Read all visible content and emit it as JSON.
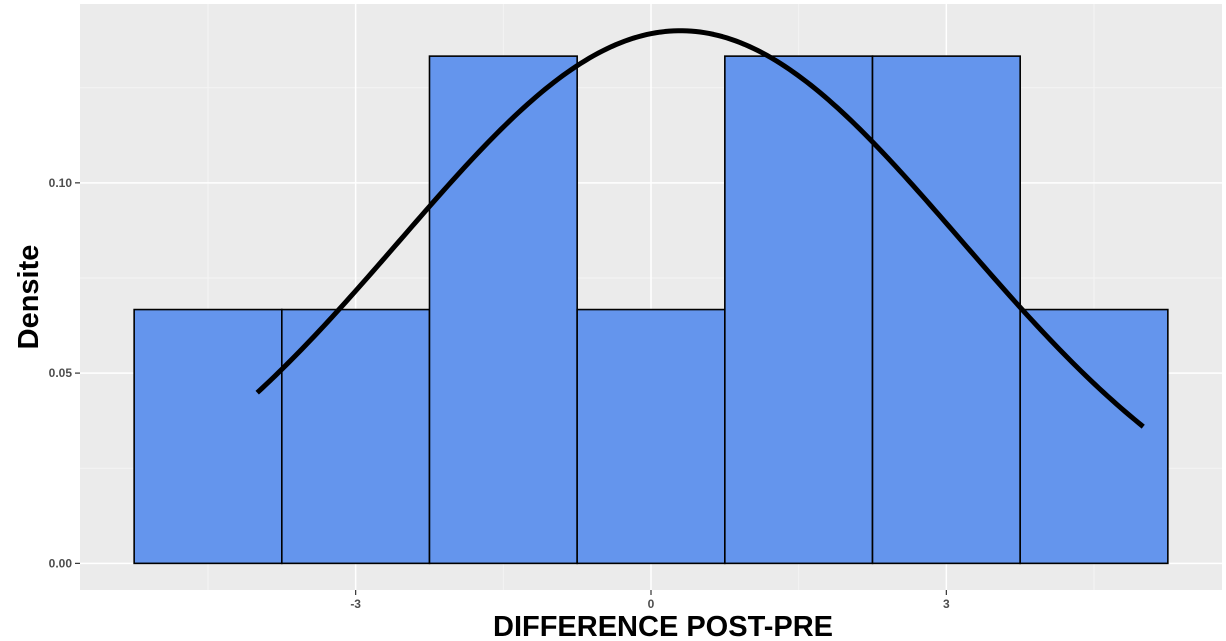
{
  "chart_data": {
    "type": "histogram",
    "xlabel": "DIFFERENCE POST-PRE",
    "ylabel": "Densite",
    "xlim": [
      -5.8,
      5.8
    ],
    "ylim": [
      -0.007,
      0.147
    ],
    "x_ticks": [
      -3,
      0,
      3
    ],
    "x_minor_ticks": [
      -4.5,
      -1.5,
      1.5,
      4.5
    ],
    "y_ticks": [
      0.0,
      0.05,
      0.1
    ],
    "y_minor_ticks": [
      0.025,
      0.075,
      0.125
    ],
    "x_tick_labels": [
      "-3",
      "0",
      "3"
    ],
    "y_tick_labels": [
      "0.00",
      "0.05",
      "0.10"
    ],
    "bins": [
      {
        "x0": -5.25,
        "x1": -3.75,
        "density": 0.0667
      },
      {
        "x0": -3.75,
        "x1": -2.25,
        "density": 0.0667
      },
      {
        "x0": -2.25,
        "x1": -0.75,
        "density": 0.1333
      },
      {
        "x0": -0.75,
        "x1": 0.75,
        "density": 0.0667
      },
      {
        "x0": 0.75,
        "x1": 2.25,
        "density": 0.1333
      },
      {
        "x0": 2.25,
        "x1": 3.75,
        "density": 0.1333
      },
      {
        "x0": 3.75,
        "x1": 5.25,
        "density": 0.0667
      }
    ],
    "density_curve": {
      "distribution": "normal",
      "mean": 0.3,
      "sd": 2.85,
      "x_range": [
        -4.0,
        5.0
      ]
    },
    "grid": true,
    "colors": {
      "panel_background": "#ebebeb",
      "grid_major": "#ffffff",
      "grid_minor": "#f4f4f4",
      "bar_fill": "#6495ed",
      "bar_outline": "#000000",
      "curve": "#000000"
    }
  }
}
